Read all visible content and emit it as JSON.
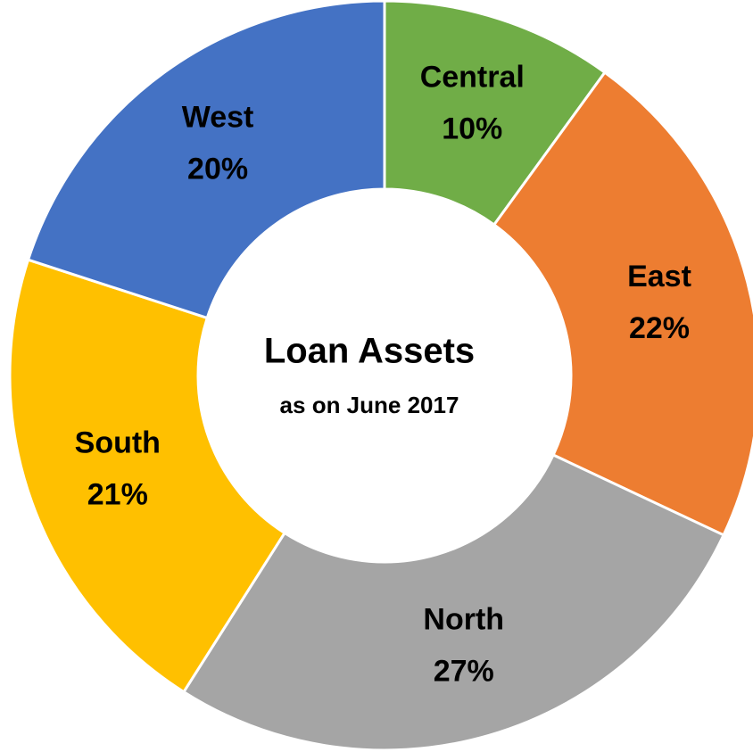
{
  "chart_data": {
    "type": "donut",
    "title": "Loan Assets",
    "subtitle": "as on June 2017",
    "categories": [
      "Central",
      "East",
      "North",
      "South",
      "West"
    ],
    "values": [
      10,
      22,
      27,
      21,
      20
    ],
    "value_labels": [
      "10%",
      "22%",
      "27%",
      "21%",
      "20%"
    ],
    "colors": [
      "#70ad47",
      "#ed7d31",
      "#a5a5a5",
      "#ffc000",
      "#4472c4"
    ]
  }
}
